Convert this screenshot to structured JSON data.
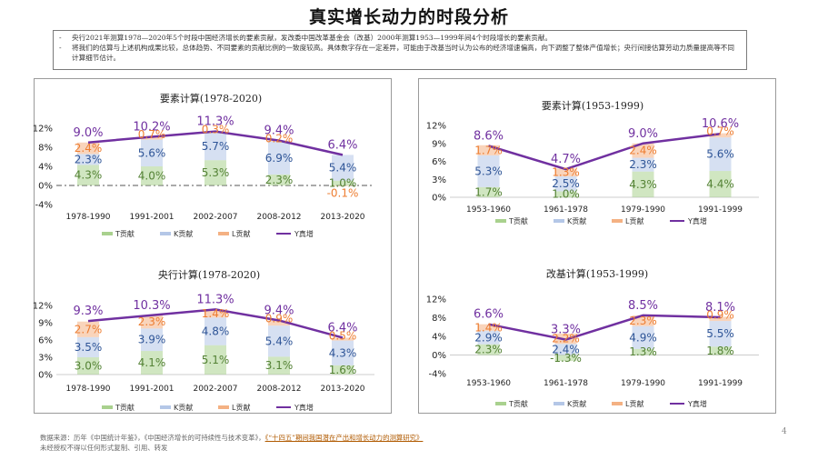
{
  "title": "真实增长动力的时段分析",
  "notes": [
    {
      "mark": "-",
      "text": "央行2021年测算1978—2020年5个时段中国经济增长的要素贡献，发改委中国改革基金会（改基）2000年测算1953—1999年间4个时段增长的要素贡献。"
    },
    {
      "mark": "-",
      "text": "将我们的估算与上述机构成果比较，总体趋势、不同要素的贡献比例的一致度较高。具体数字存在一定差异，可能由于改基当时认为公布的经济增速偏高，向下调整了整体产值增长；央行间接估算劳动力质量提高等不同计算细节估计。"
    }
  ],
  "source": {
    "prefix": "数据来源：历年《中国统计年鉴》，《中国经济增长的可持续性与技术变革》，",
    "link": "《“十四五”期间我国潜在产出和增长动力的测算研究》",
    "line2": "未经授权不得以任何形式复制、引用、转发"
  },
  "page_number": "4",
  "colors": {
    "T": "#a9d18e",
    "K": "#b4c7e7",
    "L": "#f4b183",
    "Y": "#7030a0",
    "T_text": "#548235",
    "K_text": "#2f5597",
    "L_text": "#ed7d31",
    "Y_text": "#7030a0"
  },
  "chart_data": [
    {
      "type": "bar",
      "title": "要素计算(1978-2020)",
      "categories": [
        "1978-1990",
        "1991-2001",
        "2002-2007",
        "2008-2012",
        "2013-2020"
      ],
      "yticks": [
        "12%",
        "8%",
        "4%",
        "0%",
        "-4%"
      ],
      "ylim": [
        -4,
        12
      ],
      "series": [
        {
          "name": "T贡献",
          "key": "T",
          "labels": [
            "4.3%",
            "4.0%",
            "5.3%",
            "2.3%",
            "1.0%"
          ],
          "values": [
            4.3,
            4.0,
            5.3,
            2.3,
            1.0
          ]
        },
        {
          "name": "K贡献",
          "key": "K",
          "labels": [
            "2.3%",
            "5.6%",
            "5.7%",
            "6.9%",
            "5.4%"
          ],
          "values": [
            2.3,
            5.6,
            5.7,
            6.9,
            5.4
          ]
        },
        {
          "name": "L贡献",
          "key": "L",
          "labels": [
            "2.4%",
            "0.7%",
            "0.3%",
            "0.2%",
            "-0.1%"
          ],
          "values": [
            2.4,
            0.7,
            0.3,
            0.2,
            -0.1
          ]
        },
        {
          "name": "Y真增",
          "key": "Y",
          "labels": [
            "9.0%",
            "10.2%",
            "11.3%",
            "9.4%",
            "6.4%"
          ],
          "values": [
            9.0,
            10.2,
            11.3,
            9.4,
            6.4
          ]
        }
      ]
    },
    {
      "type": "bar",
      "title": "央行计算(1978-2020)",
      "categories": [
        "1978-1990",
        "1991-2001",
        "2002-2007",
        "2008-2012",
        "2013-2020"
      ],
      "yticks": [
        "12%",
        "9%",
        "6%",
        "3%",
        "0%"
      ],
      "ylim": [
        0,
        12
      ],
      "series": [
        {
          "name": "T贡献",
          "key": "T",
          "labels": [
            "3.0%",
            "4.1%",
            "5.1%",
            "3.1%",
            "1.6%"
          ],
          "values": [
            3.0,
            4.1,
            5.1,
            3.1,
            1.6
          ]
        },
        {
          "name": "K贡献",
          "key": "K",
          "labels": [
            "3.5%",
            "3.9%",
            "4.8%",
            "5.4%",
            "4.3%"
          ],
          "values": [
            3.5,
            3.9,
            4.8,
            5.4,
            4.3
          ]
        },
        {
          "name": "L贡献",
          "key": "L",
          "labels": [
            "2.7%",
            "2.3%",
            "1.4%",
            "0.9%",
            "0.5%"
          ],
          "values": [
            2.7,
            2.3,
            1.4,
            0.9,
            0.5
          ]
        },
        {
          "name": "Y真增",
          "key": "Y",
          "labels": [
            "9.3%",
            "10.3%",
            "11.3%",
            "9.4%",
            "6.4%"
          ],
          "values": [
            9.3,
            10.3,
            11.3,
            9.4,
            6.4
          ]
        }
      ]
    },
    {
      "type": "bar",
      "title": "要素计算(1953-1999)",
      "categories": [
        "1953-1960",
        "1961-1978",
        "1979-1990",
        "1991-1999"
      ],
      "yticks": [
        "12%",
        "9%",
        "6%",
        "3%",
        "0%"
      ],
      "ylim": [
        0,
        12
      ],
      "series": [
        {
          "name": "T贡献",
          "key": "T",
          "labels": [
            "1.7%",
            "1.0%",
            "4.3%",
            "4.4%"
          ],
          "values": [
            1.7,
            1.0,
            4.3,
            4.4
          ]
        },
        {
          "name": "K贡献",
          "key": "K",
          "labels": [
            "5.3%",
            "2.5%",
            "2.3%",
            "5.6%"
          ],
          "values": [
            5.3,
            2.5,
            2.3,
            5.6
          ]
        },
        {
          "name": "L贡献",
          "key": "L",
          "labels": [
            "1.7%",
            "1.3%",
            "2.4%",
            "0.7%"
          ],
          "values": [
            1.7,
            1.3,
            2.4,
            0.7
          ]
        },
        {
          "name": "Y真增",
          "key": "Y",
          "labels": [
            "8.6%",
            "4.7%",
            "9.0%",
            "10.6%"
          ],
          "values": [
            8.6,
            4.7,
            9.0,
            10.6
          ]
        }
      ]
    },
    {
      "type": "bar",
      "title": "改基计算(1953-1999)",
      "categories": [
        "1953-1960",
        "1961-1978",
        "1979-1990",
        "1991-1999"
      ],
      "yticks": [
        "12%",
        "8%",
        "4%",
        "0%",
        "-4%"
      ],
      "ylim": [
        -4,
        12
      ],
      "series": [
        {
          "name": "T贡献",
          "key": "T",
          "labels": [
            "2.3%",
            "-1.3%",
            "1.3%",
            "1.8%"
          ],
          "values": [
            2.3,
            -1.3,
            1.3,
            1.8
          ]
        },
        {
          "name": "K贡献",
          "key": "K",
          "labels": [
            "2.9%",
            "2.4%",
            "4.9%",
            "5.5%"
          ],
          "values": [
            2.9,
            2.4,
            4.9,
            5.5
          ]
        },
        {
          "name": "L贡献",
          "key": "L",
          "labels": [
            "1.4%",
            "2.2%",
            "2.3%",
            "0.9%"
          ],
          "values": [
            1.4,
            2.2,
            2.3,
            0.9
          ]
        },
        {
          "name": "Y真增",
          "key": "Y",
          "labels": [
            "6.6%",
            "3.3%",
            "8.5%",
            "8.1%"
          ],
          "values": [
            6.6,
            3.3,
            8.5,
            8.1
          ]
        }
      ]
    }
  ]
}
